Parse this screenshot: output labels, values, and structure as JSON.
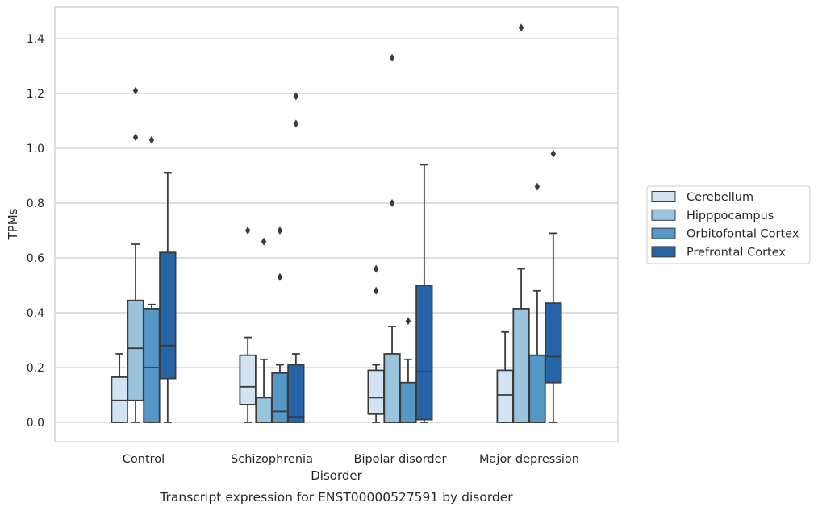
{
  "chart_data": {
    "type": "box",
    "xlabel": "Disorder",
    "ylabel": "TPMs",
    "caption": "Transcript expression for ENST00000527591 by disorder",
    "ylim": [
      -0.07,
      1.52
    ],
    "yticks": [
      "0.0",
      "0.2",
      "0.4",
      "0.6",
      "0.8",
      "1.0",
      "1.2",
      "1.4"
    ],
    "grid": true,
    "legend_position": "right",
    "categories": [
      "Control",
      "Schizophrenia",
      "Bipolar disorder",
      "Major depression"
    ],
    "series": [
      {
        "name": "Cerebellum",
        "color": "#d4e3f3",
        "boxes": [
          {
            "whisker_low": 0.0,
            "q1": 0.0,
            "median": 0.08,
            "q3": 0.165,
            "whisker_high": 0.25,
            "outliers": []
          },
          {
            "whisker_low": 0.0,
            "q1": 0.065,
            "median": 0.13,
            "q3": 0.245,
            "whisker_high": 0.31,
            "outliers": [
              0.7
            ]
          },
          {
            "whisker_low": 0.0,
            "q1": 0.03,
            "median": 0.09,
            "q3": 0.19,
            "whisker_high": 0.21,
            "outliers": [
              0.48,
              0.56
            ]
          },
          {
            "whisker_low": 0.0,
            "q1": 0.0,
            "median": 0.1,
            "q3": 0.19,
            "whisker_high": 0.33,
            "outliers": []
          }
        ]
      },
      {
        "name": "Hipppocampus",
        "color": "#9ac3dd",
        "boxes": [
          {
            "whisker_low": 0.0,
            "q1": 0.08,
            "median": 0.27,
            "q3": 0.445,
            "whisker_high": 0.65,
            "outliers": [
              1.04,
              1.21
            ]
          },
          {
            "whisker_low": 0.0,
            "q1": 0.0,
            "median": 0.0,
            "q3": 0.09,
            "whisker_high": 0.23,
            "outliers": [
              0.66
            ]
          },
          {
            "whisker_low": 0.0,
            "q1": 0.0,
            "median": 0.0,
            "q3": 0.25,
            "whisker_high": 0.35,
            "outliers": [
              0.8,
              1.33
            ]
          },
          {
            "whisker_low": 0.0,
            "q1": 0.0,
            "median": 0.0,
            "q3": 0.415,
            "whisker_high": 0.56,
            "outliers": [
              1.44
            ]
          }
        ]
      },
      {
        "name": "Orbitofontal Cortex",
        "color": "#5597c6",
        "boxes": [
          {
            "whisker_low": 0.0,
            "q1": 0.0,
            "median": 0.2,
            "q3": 0.415,
            "whisker_high": 0.43,
            "outliers": [
              1.03
            ]
          },
          {
            "whisker_low": 0.0,
            "q1": 0.0,
            "median": 0.04,
            "q3": 0.18,
            "whisker_high": 0.21,
            "outliers": [
              0.53,
              0.7
            ]
          },
          {
            "whisker_low": 0.0,
            "q1": 0.0,
            "median": 0.0,
            "q3": 0.145,
            "whisker_high": 0.23,
            "outliers": [
              0.37
            ]
          },
          {
            "whisker_low": 0.0,
            "q1": 0.0,
            "median": 0.0,
            "q3": 0.245,
            "whisker_high": 0.48,
            "outliers": [
              0.86
            ]
          }
        ]
      },
      {
        "name": "Prefrontal Cortex",
        "color": "#2564a6",
        "boxes": [
          {
            "whisker_low": 0.0,
            "q1": 0.16,
            "median": 0.28,
            "q3": 0.62,
            "whisker_high": 0.91,
            "outliers": []
          },
          {
            "whisker_low": 0.0,
            "q1": 0.0,
            "median": 0.02,
            "q3": 0.21,
            "whisker_high": 0.25,
            "outliers": [
              1.09,
              1.19
            ]
          },
          {
            "whisker_low": 0.0,
            "q1": 0.01,
            "median": 0.185,
            "q3": 0.5,
            "whisker_high": 0.94,
            "outliers": []
          },
          {
            "whisker_low": 0.0,
            "q1": 0.145,
            "median": 0.24,
            "q3": 0.435,
            "whisker_high": 0.69,
            "outliers": [
              0.98
            ]
          }
        ]
      }
    ]
  }
}
